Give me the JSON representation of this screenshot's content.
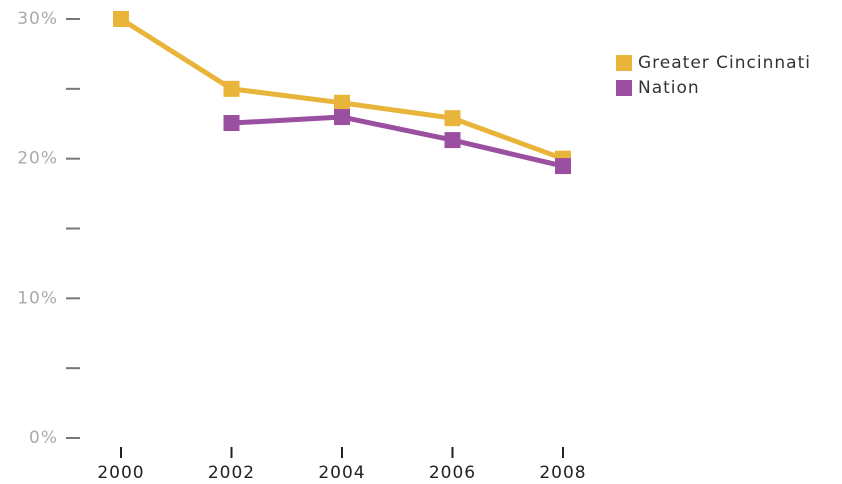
{
  "chart_data": {
    "type": "line",
    "x": [
      2000,
      2002,
      2004,
      2006,
      2008
    ],
    "series": [
      {
        "name": "Greater Cincinnati",
        "color": "#e8b53a",
        "values": [
          30,
          25,
          24,
          22.9,
          20
        ]
      },
      {
        "name": "Nation",
        "color": "#9b4fa0",
        "values": [
          null,
          22.55,
          22.98,
          21.33,
          19.47
        ]
      }
    ],
    "xlim": [
      2000,
      2008
    ],
    "xticks": [
      2000,
      2002,
      2004,
      2006,
      2008
    ],
    "ylim": [
      0,
      30
    ],
    "yticks": [
      {
        "value": 0,
        "label": "0%"
      },
      {
        "value": 10,
        "label": "10%"
      },
      {
        "value": 20,
        "label": "20%"
      },
      {
        "value": 30,
        "label": "30%"
      }
    ],
    "yticks_minor": [
      5,
      15,
      25
    ],
    "legend": "top-right"
  }
}
